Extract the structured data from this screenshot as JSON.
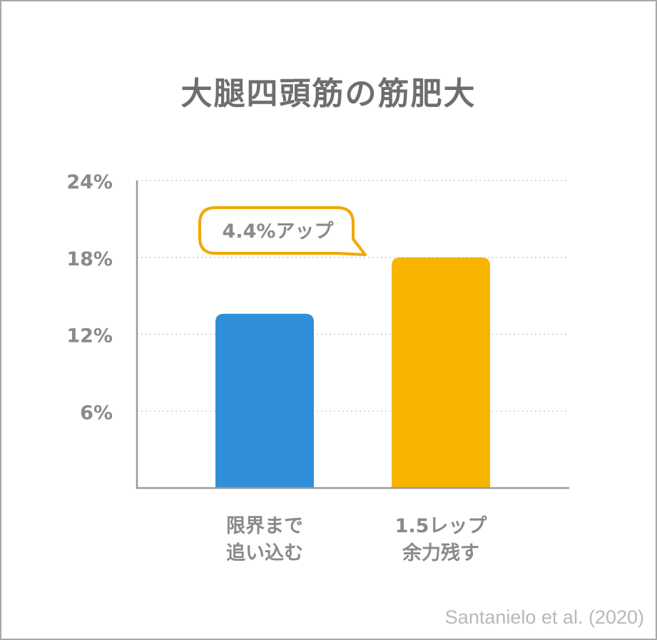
{
  "chart_data": {
    "type": "bar",
    "title": "大腿四頭筋の筋肥大",
    "categories": [
      [
        "限界まで",
        "追い込む"
      ],
      [
        "1.5レップ",
        "余力残す"
      ]
    ],
    "values": [
      13.6,
      18.0
    ],
    "colors": [
      "#2f90d9",
      "#f7b500"
    ],
    "ylim": [
      0,
      24
    ],
    "yticks": [
      6,
      12,
      18,
      24
    ],
    "ytick_labels": [
      "6%",
      "12%",
      "18%",
      "24%"
    ],
    "grid": true,
    "annotation": {
      "text": "4.4%アップ",
      "color": "#f0a800"
    },
    "source": "Santanielo et al. (2020)"
  }
}
